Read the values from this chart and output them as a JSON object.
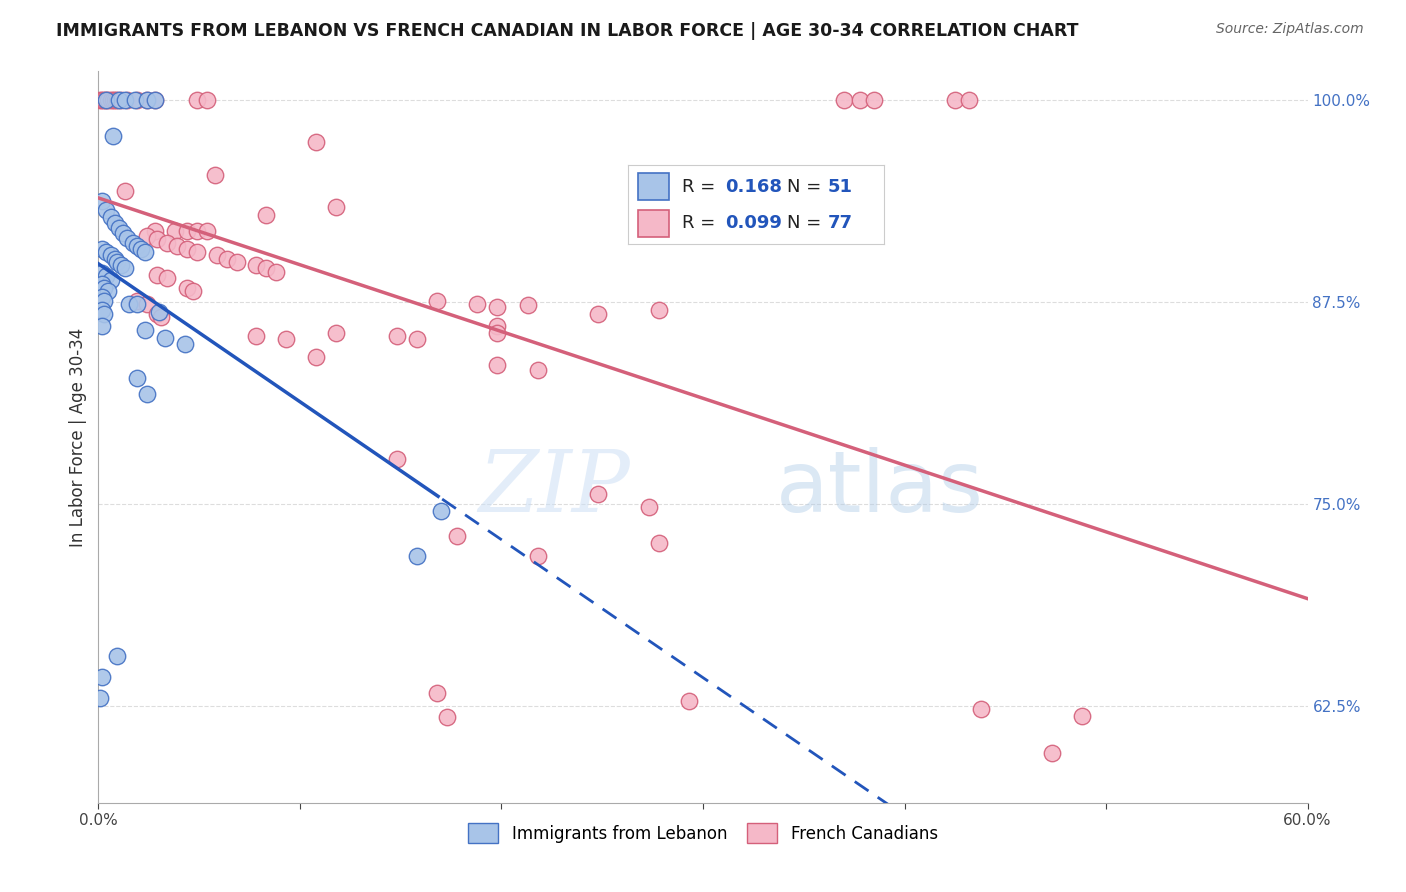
{
  "title": "IMMIGRANTS FROM LEBANON VS FRENCH CANADIAN IN LABOR FORCE | AGE 30-34 CORRELATION CHART",
  "source": "Source: ZipAtlas.com",
  "ylabel": "In Labor Force | Age 30-34",
  "x_min": 0.0,
  "x_max": 0.6,
  "y_min": 0.565,
  "y_max": 1.018,
  "y_ticks": [
    0.625,
    0.75,
    0.875,
    1.0
  ],
  "legend_blue_R": "0.168",
  "legend_blue_N": "51",
  "legend_pink_R": "0.099",
  "legend_pink_N": "77",
  "blue_color": "#a8c4e8",
  "pink_color": "#f5b8c8",
  "blue_edge_color": "#4472c4",
  "pink_edge_color": "#d4607a",
  "blue_line_color": "#2255bb",
  "pink_line_color": "#d4607a",
  "blue_scatter": [
    [
      0.004,
      1.0
    ],
    [
      0.01,
      1.0
    ],
    [
      0.013,
      1.0
    ],
    [
      0.018,
      1.0
    ],
    [
      0.024,
      1.0
    ],
    [
      0.028,
      1.0
    ],
    [
      0.007,
      0.978
    ],
    [
      0.002,
      0.938
    ],
    [
      0.004,
      0.932
    ],
    [
      0.006,
      0.928
    ],
    [
      0.008,
      0.924
    ],
    [
      0.01,
      0.921
    ],
    [
      0.012,
      0.918
    ],
    [
      0.014,
      0.915
    ],
    [
      0.017,
      0.912
    ],
    [
      0.019,
      0.91
    ],
    [
      0.021,
      0.908
    ],
    [
      0.023,
      0.906
    ],
    [
      0.002,
      0.908
    ],
    [
      0.004,
      0.906
    ],
    [
      0.006,
      0.904
    ],
    [
      0.008,
      0.902
    ],
    [
      0.009,
      0.9
    ],
    [
      0.011,
      0.898
    ],
    [
      0.013,
      0.896
    ],
    [
      0.002,
      0.893
    ],
    [
      0.004,
      0.891
    ],
    [
      0.006,
      0.889
    ],
    [
      0.002,
      0.886
    ],
    [
      0.003,
      0.884
    ],
    [
      0.005,
      0.882
    ],
    [
      0.002,
      0.878
    ],
    [
      0.003,
      0.876
    ],
    [
      0.002,
      0.87
    ],
    [
      0.003,
      0.868
    ],
    [
      0.002,
      0.86
    ],
    [
      0.015,
      0.874
    ],
    [
      0.019,
      0.874
    ],
    [
      0.03,
      0.869
    ],
    [
      0.023,
      0.858
    ],
    [
      0.033,
      0.853
    ],
    [
      0.043,
      0.849
    ],
    [
      0.019,
      0.828
    ],
    [
      0.024,
      0.818
    ],
    [
      0.17,
      0.746
    ],
    [
      0.158,
      0.718
    ],
    [
      0.002,
      0.643
    ],
    [
      0.009,
      0.656
    ],
    [
      0.001,
      0.63
    ]
  ],
  "pink_scatter": [
    [
      0.001,
      1.0
    ],
    [
      0.002,
      1.0
    ],
    [
      0.003,
      1.0
    ],
    [
      0.004,
      1.0
    ],
    [
      0.005,
      1.0
    ],
    [
      0.006,
      1.0
    ],
    [
      0.007,
      1.0
    ],
    [
      0.008,
      1.0
    ],
    [
      0.009,
      1.0
    ],
    [
      0.011,
      1.0
    ],
    [
      0.014,
      1.0
    ],
    [
      0.019,
      1.0
    ],
    [
      0.024,
      1.0
    ],
    [
      0.028,
      1.0
    ],
    [
      0.049,
      1.0
    ],
    [
      0.054,
      1.0
    ],
    [
      0.37,
      1.0
    ],
    [
      0.378,
      1.0
    ],
    [
      0.385,
      1.0
    ],
    [
      0.425,
      1.0
    ],
    [
      0.432,
      1.0
    ],
    [
      0.108,
      0.974
    ],
    [
      0.058,
      0.954
    ],
    [
      0.013,
      0.944
    ],
    [
      0.118,
      0.934
    ],
    [
      0.083,
      0.929
    ],
    [
      0.028,
      0.919
    ],
    [
      0.038,
      0.919
    ],
    [
      0.044,
      0.919
    ],
    [
      0.049,
      0.919
    ],
    [
      0.054,
      0.919
    ],
    [
      0.024,
      0.916
    ],
    [
      0.029,
      0.914
    ],
    [
      0.034,
      0.912
    ],
    [
      0.039,
      0.91
    ],
    [
      0.044,
      0.908
    ],
    [
      0.049,
      0.906
    ],
    [
      0.059,
      0.904
    ],
    [
      0.064,
      0.902
    ],
    [
      0.069,
      0.9
    ],
    [
      0.078,
      0.898
    ],
    [
      0.083,
      0.896
    ],
    [
      0.088,
      0.894
    ],
    [
      0.029,
      0.892
    ],
    [
      0.034,
      0.89
    ],
    [
      0.044,
      0.884
    ],
    [
      0.047,
      0.882
    ],
    [
      0.019,
      0.876
    ],
    [
      0.024,
      0.874
    ],
    [
      0.029,
      0.868
    ],
    [
      0.031,
      0.866
    ],
    [
      0.168,
      0.876
    ],
    [
      0.188,
      0.874
    ],
    [
      0.198,
      0.872
    ],
    [
      0.213,
      0.873
    ],
    [
      0.278,
      0.87
    ],
    [
      0.198,
      0.86
    ],
    [
      0.198,
      0.856
    ],
    [
      0.078,
      0.854
    ],
    [
      0.093,
      0.852
    ],
    [
      0.118,
      0.856
    ],
    [
      0.148,
      0.854
    ],
    [
      0.158,
      0.852
    ],
    [
      0.248,
      0.868
    ],
    [
      0.108,
      0.841
    ],
    [
      0.198,
      0.836
    ],
    [
      0.218,
      0.833
    ],
    [
      0.148,
      0.778
    ],
    [
      0.248,
      0.756
    ],
    [
      0.273,
      0.748
    ],
    [
      0.178,
      0.73
    ],
    [
      0.278,
      0.726
    ],
    [
      0.218,
      0.718
    ],
    [
      0.168,
      0.633
    ],
    [
      0.173,
      0.618
    ],
    [
      0.293,
      0.628
    ],
    [
      0.438,
      0.623
    ],
    [
      0.488,
      0.619
    ],
    [
      0.473,
      0.596
    ]
  ],
  "background_color": "#ffffff",
  "grid_color": "#dddddd",
  "watermark_zip": "ZIP",
  "watermark_atlas": "atlas"
}
